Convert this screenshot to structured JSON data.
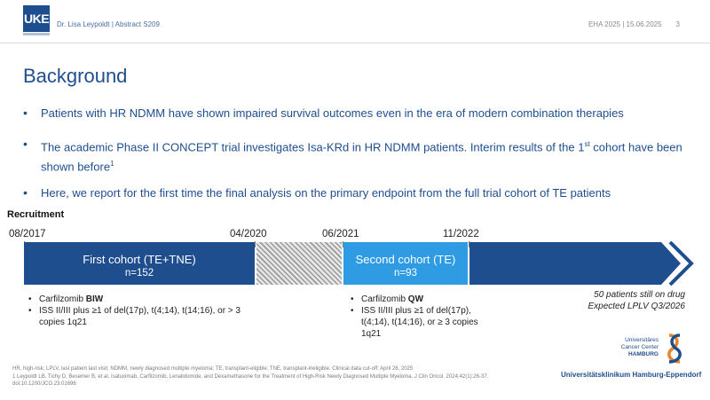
{
  "header": {
    "logo_text": "UKE",
    "presenter": "Dr. Lisa Leypoldt | Abstract S209",
    "event": "EHA 2025 | 15.06.2025",
    "page_number": "3"
  },
  "title": "Background",
  "bullets": [
    {
      "text": "Patients with HR NDMM have shown impaired survival outcomes even in the era of modern combination therapies"
    },
    {
      "text_a": "The academic Phase II CONCEPT trial investigates Isa-KRd in HR NDMM patients. Interim results of the 1",
      "sup_a": "st",
      "text_b": " cohort have been shown before",
      "sup_b": "1"
    },
    {
      "text": "Here, we report for the first time the final analysis on the primary endpoint from the full trial cohort of TE patients"
    }
  ],
  "recruitment": {
    "label": "Recruitment",
    "dates": [
      "08/2017",
      "04/2020",
      "06/2021",
      "11/2022"
    ],
    "cohort1": {
      "label": "First cohort (TE+TNE)",
      "n": "n=152"
    },
    "cohort2": {
      "label": "Second cohort (TE)",
      "n": "n=93"
    },
    "cohort1_details": {
      "dose_prefix": "Carfilzomib ",
      "dose_bold": "BIW",
      "criteria": "ISS II/III plus ≥1 of del(17p), t(4;14), t(14;16), or > 3 copies 1q21"
    },
    "cohort2_details": {
      "dose_prefix": "Carfilzomib ",
      "dose_bold": "QW",
      "criteria": "ISS II/III plus ≥1 of del(17p), t(4;14), t(14;16), or ≥ 3 copies 1q21"
    },
    "note_line1": "50 patients still on drug",
    "note_line2": "Expected LPLV Q3/2026"
  },
  "footnote": {
    "line1": "HR, high-risk; LPLV, last patient last visit; NDMM, newly diagnosed multiple myeloma; TE, transplant-eligible; TNE, transplant-ineligible. Clinical data cut-off: April 28, 2025",
    "line2": "1 Leypoldt LB, Tichy D, Besemer B, et al. Isatuximab, Carfilzomib, Lenalidomide, and Dexamethasone for the Treatment of High-Risk Newly Diagnosed Multiple Myeloma. J Clin Oncol. 2024;42(1):26-37. doi:10.1200/JCO.23.01696"
  },
  "logos": {
    "cc_line1": "Universitäres",
    "cc_line2": "Cancer Center",
    "cc_line3": "HAMBURG",
    "hospital": "Universitätsklinikum Hamburg-Eppendorf"
  },
  "colors": {
    "primary": "#1f4e8f",
    "secondary": "#2e9be3",
    "logo_orange": "#e8842b"
  }
}
